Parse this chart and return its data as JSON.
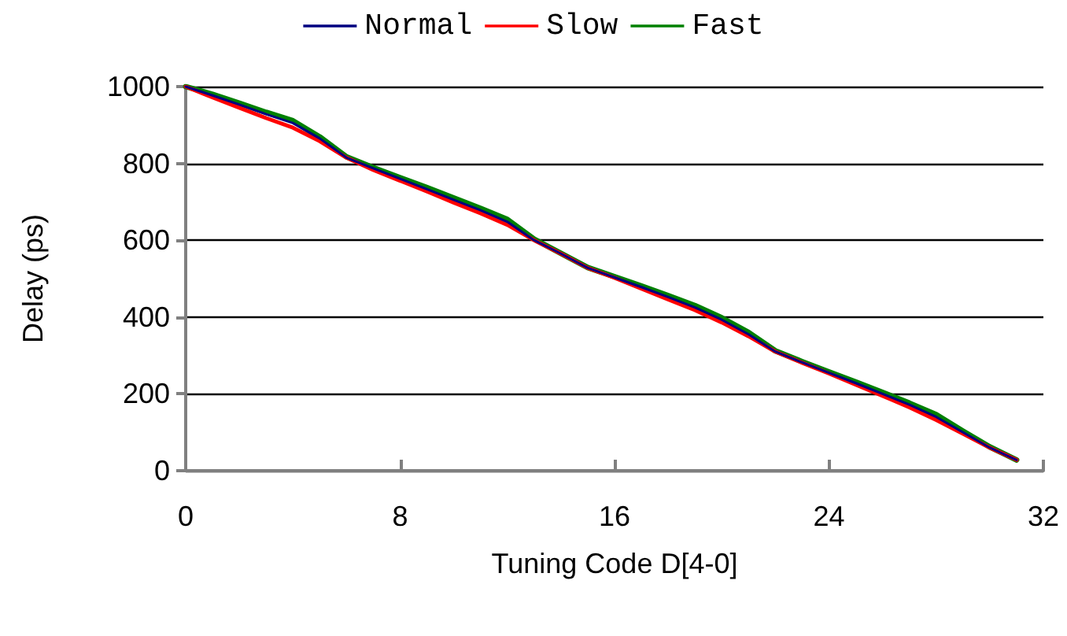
{
  "chart_data": {
    "type": "line",
    "xlabel": "Tuning Code D[4-0]",
    "ylabel": "Delay (ps)",
    "x": [
      0,
      1,
      2,
      3,
      4,
      5,
      6,
      7,
      8,
      9,
      10,
      11,
      12,
      13,
      14,
      15,
      16,
      17,
      18,
      19,
      20,
      21,
      22,
      23,
      24,
      25,
      26,
      27,
      28,
      29,
      30,
      31
    ],
    "series": [
      {
        "name": "Normal",
        "color": "#000080",
        "values": [
          1000,
          977,
          953,
          928,
          905,
          865,
          815,
          787,
          760,
          733,
          705,
          678,
          648,
          600,
          565,
          528,
          503,
          478,
          452,
          425,
          393,
          355,
          310,
          282,
          255,
          228,
          200,
          172,
          140,
          100,
          60,
          28
        ]
      },
      {
        "name": "Slow",
        "color": "#ff0000",
        "values": [
          1000,
          972,
          945,
          918,
          893,
          858,
          815,
          783,
          755,
          727,
          698,
          670,
          640,
          600,
          565,
          528,
          502,
          474,
          446,
          418,
          386,
          350,
          310,
          281,
          253,
          224,
          195,
          165,
          132,
          96,
          60,
          28
        ]
      },
      {
        "name": "Fast",
        "color": "#008000",
        "values": [
          1000,
          980,
          957,
          933,
          911,
          869,
          817,
          789,
          763,
          737,
          710,
          683,
          654,
          603,
          566,
          529,
          505,
          481,
          456,
          430,
          398,
          360,
          312,
          284,
          257,
          231,
          204,
          176,
          146,
          103,
          62,
          28
        ]
      }
    ],
    "xlim": [
      0,
      32
    ],
    "xticks": [
      0,
      8,
      16,
      24,
      32
    ],
    "ylim": [
      0,
      1000
    ],
    "yticks": [
      0,
      200,
      400,
      600,
      800,
      1000
    ],
    "grid": "y",
    "legend": "top",
    "marker": "none",
    "line_style": "solid"
  }
}
